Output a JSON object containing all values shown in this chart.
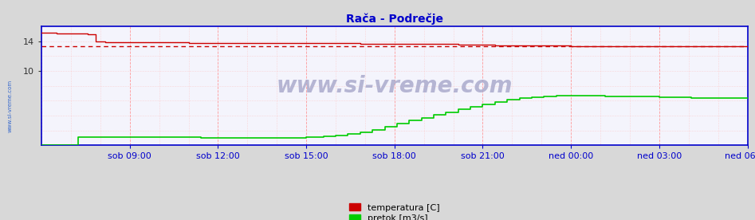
{
  "title": "Rača - Podrečje",
  "title_color": "#0000cc",
  "bg_color": "#e8e8e8",
  "plot_bg_color": "#f0f0f8",
  "x_tick_labels": [
    "sob 09:00",
    "sob 12:00",
    "sob 15:00",
    "sob 18:00",
    "sob 21:00",
    "ned 00:00",
    "ned 03:00",
    "ned 06:00"
  ],
  "x_tick_positions": [
    3,
    6,
    9,
    12,
    15,
    18,
    21,
    24
  ],
  "ylim": [
    0,
    16
  ],
  "temp_color": "#cc0000",
  "flow_color": "#00cc00",
  "avg_line_color": "#cc0000",
  "avg_line_y": 13.3,
  "axis_color": "#0000cc",
  "watermark": "www.si-vreme.com",
  "legend_labels": [
    "temperatura [C]",
    "pretok [m3/s]"
  ],
  "legend_colors": [
    "#cc0000",
    "#00cc00"
  ]
}
